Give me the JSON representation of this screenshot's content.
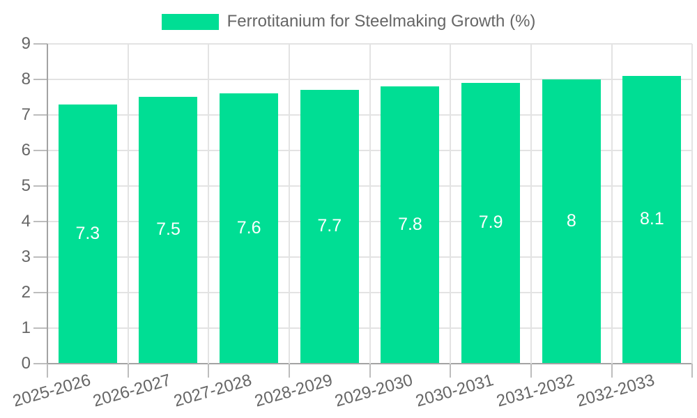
{
  "legend": {
    "label": "Ferrotitanium for Steelmaking Growth (%)",
    "swatch_color": "#00de94"
  },
  "chart_data": {
    "type": "bar",
    "title": "Ferrotitanium for Steelmaking Growth (%)",
    "categories": [
      "2025-2026",
      "2026-2027",
      "2027-2028",
      "2028-2029",
      "2029-2030",
      "2030-2031",
      "2031-2032",
      "2032-2033"
    ],
    "values": [
      7.3,
      7.5,
      7.6,
      7.7,
      7.8,
      7.9,
      8,
      8.1
    ],
    "bar_labels": [
      "7.3",
      "7.5",
      "7.6",
      "7.7",
      "7.8",
      "7.9",
      "8",
      "8.1"
    ],
    "xlabel": "",
    "ylabel": "",
    "ylim": [
      0,
      9
    ],
    "yticks": [
      "0",
      "1",
      "2",
      "3",
      "4",
      "5",
      "6",
      "7",
      "8",
      "9"
    ],
    "grid": true,
    "legend_position": "top",
    "colors": {
      "bar": "#00de94",
      "bar_label_text": "#ffffff",
      "tick_text": "#666666",
      "gridline": "#e3e3e3",
      "axis_line": "#a3a3a3",
      "tick_mark": "#bdbdbd"
    }
  }
}
